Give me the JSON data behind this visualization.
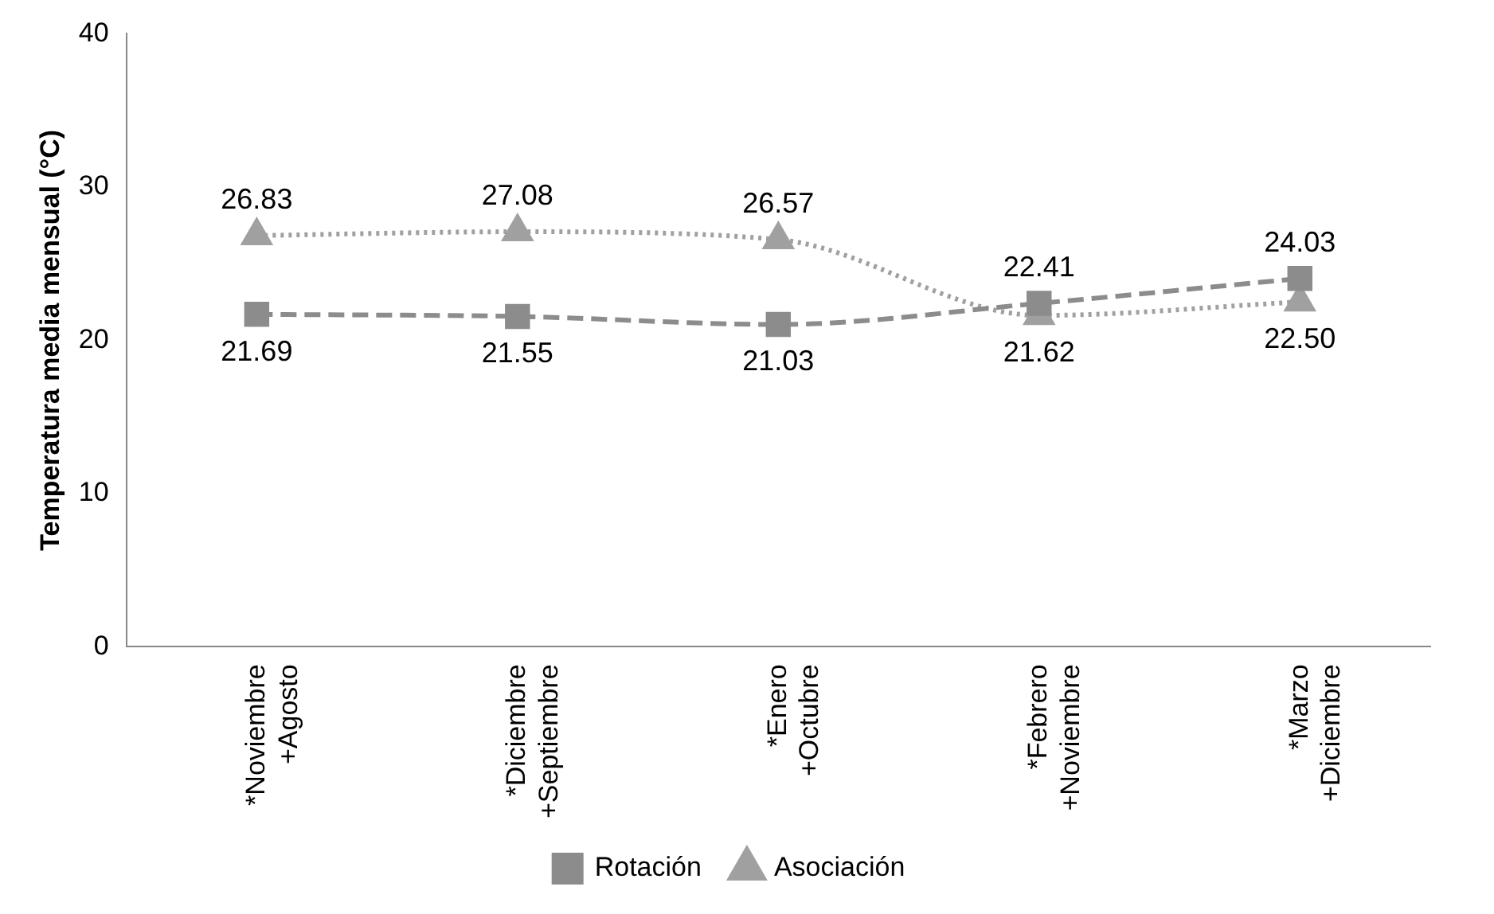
{
  "chart_data": {
    "type": "line",
    "ylabel": "Temperatura media mensual (°C)",
    "categories": [
      "*Noviembre +Agosto",
      "*Diciembre +Septiembre",
      "*Enero +Octubre",
      "*Febrero +Noviembre",
      "*Marzo +Diciembre"
    ],
    "series": [
      {
        "name": "Rotación",
        "color": "#8c8c8c",
        "values": [
          21.69,
          21.55,
          21.03,
          22.41,
          24.03
        ],
        "value_labels": [
          "21.69",
          "21.55",
          "21.03",
          "22.41",
          "24.03"
        ],
        "marker": "square",
        "line_style": "dashed"
      },
      {
        "name": "Asociación",
        "color": "#a0a0a0",
        "values": [
          26.83,
          27.08,
          26.57,
          21.62,
          22.5
        ],
        "value_labels": [
          "26.83",
          "27.08",
          "26.57",
          "21.62",
          "22.50"
        ],
        "marker": "triangle",
        "line_style": "dotted"
      }
    ],
    "ylim": [
      0,
      40
    ],
    "yticks": [
      0,
      10,
      20,
      30,
      40
    ],
    "grid": false,
    "legend": "bottom"
  }
}
